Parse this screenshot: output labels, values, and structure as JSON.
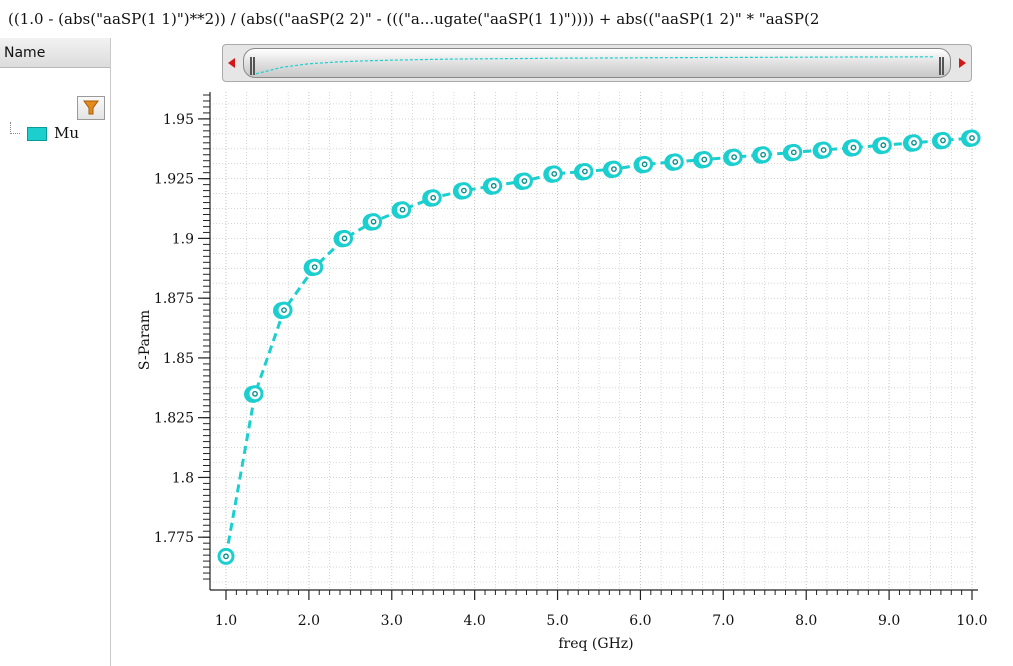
{
  "expression": "((1.0 - (abs(\"aaSP(1 1)\")**2)) / (abs((\"aaSP(2 2)\" - (((\"a...ugate(\"aaSP(1 1)\")))) + abs((\"aaSP(1 2)\" * \"aaSP(2",
  "panel": {
    "header": "Name"
  },
  "legend": {
    "label": "Mu",
    "color": "#1ccfcf"
  },
  "colors": {
    "series": "#1ccfcf",
    "marker_inner": "#0a8f8f",
    "grid": "#bdbdbd"
  },
  "chart_data": {
    "type": "line",
    "xlabel": "freq (GHz)",
    "ylabel": "S-Param",
    "xlim": [
      1.0,
      10.0
    ],
    "ylim": [
      1.755,
      1.96
    ],
    "xticks": [
      "1.0",
      "2.0",
      "3.0",
      "4.0",
      "5.0",
      "6.0",
      "7.0",
      "8.0",
      "9.0",
      "10.0"
    ],
    "yticks": [
      "1.775",
      "1.8",
      "1.825",
      "1.85",
      "1.875",
      "1.9",
      "1.925",
      "1.95"
    ],
    "grid": true,
    "series": [
      {
        "name": "Mu",
        "x": [
          1.0,
          1.35,
          1.7,
          2.07,
          2.43,
          2.78,
          3.13,
          3.5,
          3.87,
          4.23,
          4.6,
          4.96,
          5.33,
          5.68,
          6.05,
          6.42,
          6.77,
          7.13,
          7.48,
          7.85,
          8.21,
          8.57,
          8.93,
          9.3,
          9.65,
          10.0
        ],
        "y": [
          1.767,
          1.835,
          1.87,
          1.888,
          1.9,
          1.907,
          1.912,
          1.917,
          1.92,
          1.922,
          1.924,
          1.927,
          1.928,
          1.929,
          1.931,
          1.932,
          1.933,
          1.934,
          1.935,
          1.936,
          1.937,
          1.938,
          1.939,
          1.94,
          1.941,
          1.942
        ]
      }
    ]
  }
}
